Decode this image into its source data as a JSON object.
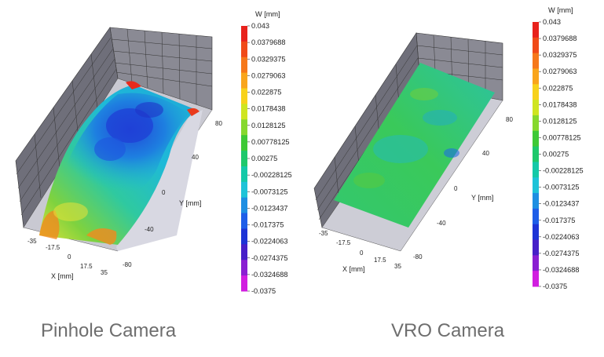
{
  "colorbar": {
    "title": "W [mm]",
    "labels": [
      "0.043",
      "0.0379688",
      "0.0329375",
      "0.0279063",
      "0.022875",
      "0.0178438",
      "0.0128125",
      "0.00778125",
      "0.00275",
      "-0.00228125",
      "-0.0073125",
      "-0.0123437",
      "-0.017375",
      "-0.0224063",
      "-0.0274375",
      "-0.0324688",
      "-0.0375"
    ],
    "colors": [
      "#e8221c",
      "#f04a18",
      "#f6781a",
      "#f9a51c",
      "#f7d21b",
      "#cfe521",
      "#86d82e",
      "#3ec936",
      "#1ec86b",
      "#14c9a8",
      "#1ec3d8",
      "#1e8fe2",
      "#1e5ee8",
      "#1d34d6",
      "#4720c8",
      "#8a1fd2",
      "#d11ee0"
    ]
  },
  "axes": {
    "x_label": "X [mm]",
    "y_label": "Y [mm]",
    "x_ticks": [
      "-35",
      "-17.5",
      "0",
      "17.5",
      "35"
    ],
    "y_ticks": [
      "80",
      "40",
      "0",
      "-40",
      "-80"
    ]
  },
  "panels": [
    {
      "caption": "Pinhole Camera"
    },
    {
      "caption": "VRO Camera"
    }
  ]
}
